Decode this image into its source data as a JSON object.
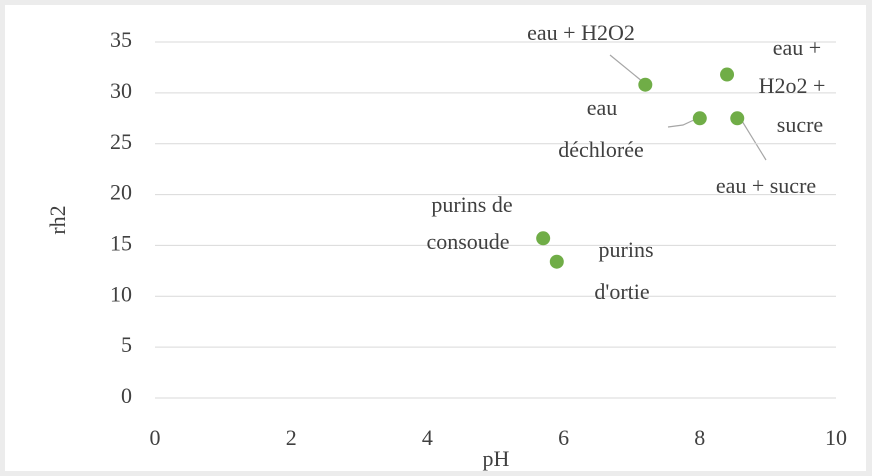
{
  "chart_data": {
    "type": "scatter",
    "x_label": "pH",
    "y_label": "rh2",
    "color": "#70ad47",
    "x": [
      7.2,
      8.4,
      8.0,
      8.55,
      5.7,
      5.9
    ],
    "values": [
      30.8,
      31.8,
      27.5,
      27.5,
      15.7,
      13.4
    ],
    "point_labels": [
      [
        "eau + H2O2"
      ],
      [
        "eau +",
        "H2o2 +",
        "sucre"
      ],
      [
        "eau",
        "déchlorée"
      ],
      [
        "eau + sucre"
      ],
      [
        "purins de",
        "consoude"
      ],
      [
        "purins",
        "d'ortie"
      ]
    ],
    "xlim": [
      0,
      10
    ],
    "xticks": [
      0,
      2,
      4,
      6,
      8,
      10
    ],
    "ylim": [
      0,
      35
    ],
    "yticks": [
      0,
      5,
      10,
      15,
      20,
      25,
      30,
      35
    ],
    "grid": true
  }
}
